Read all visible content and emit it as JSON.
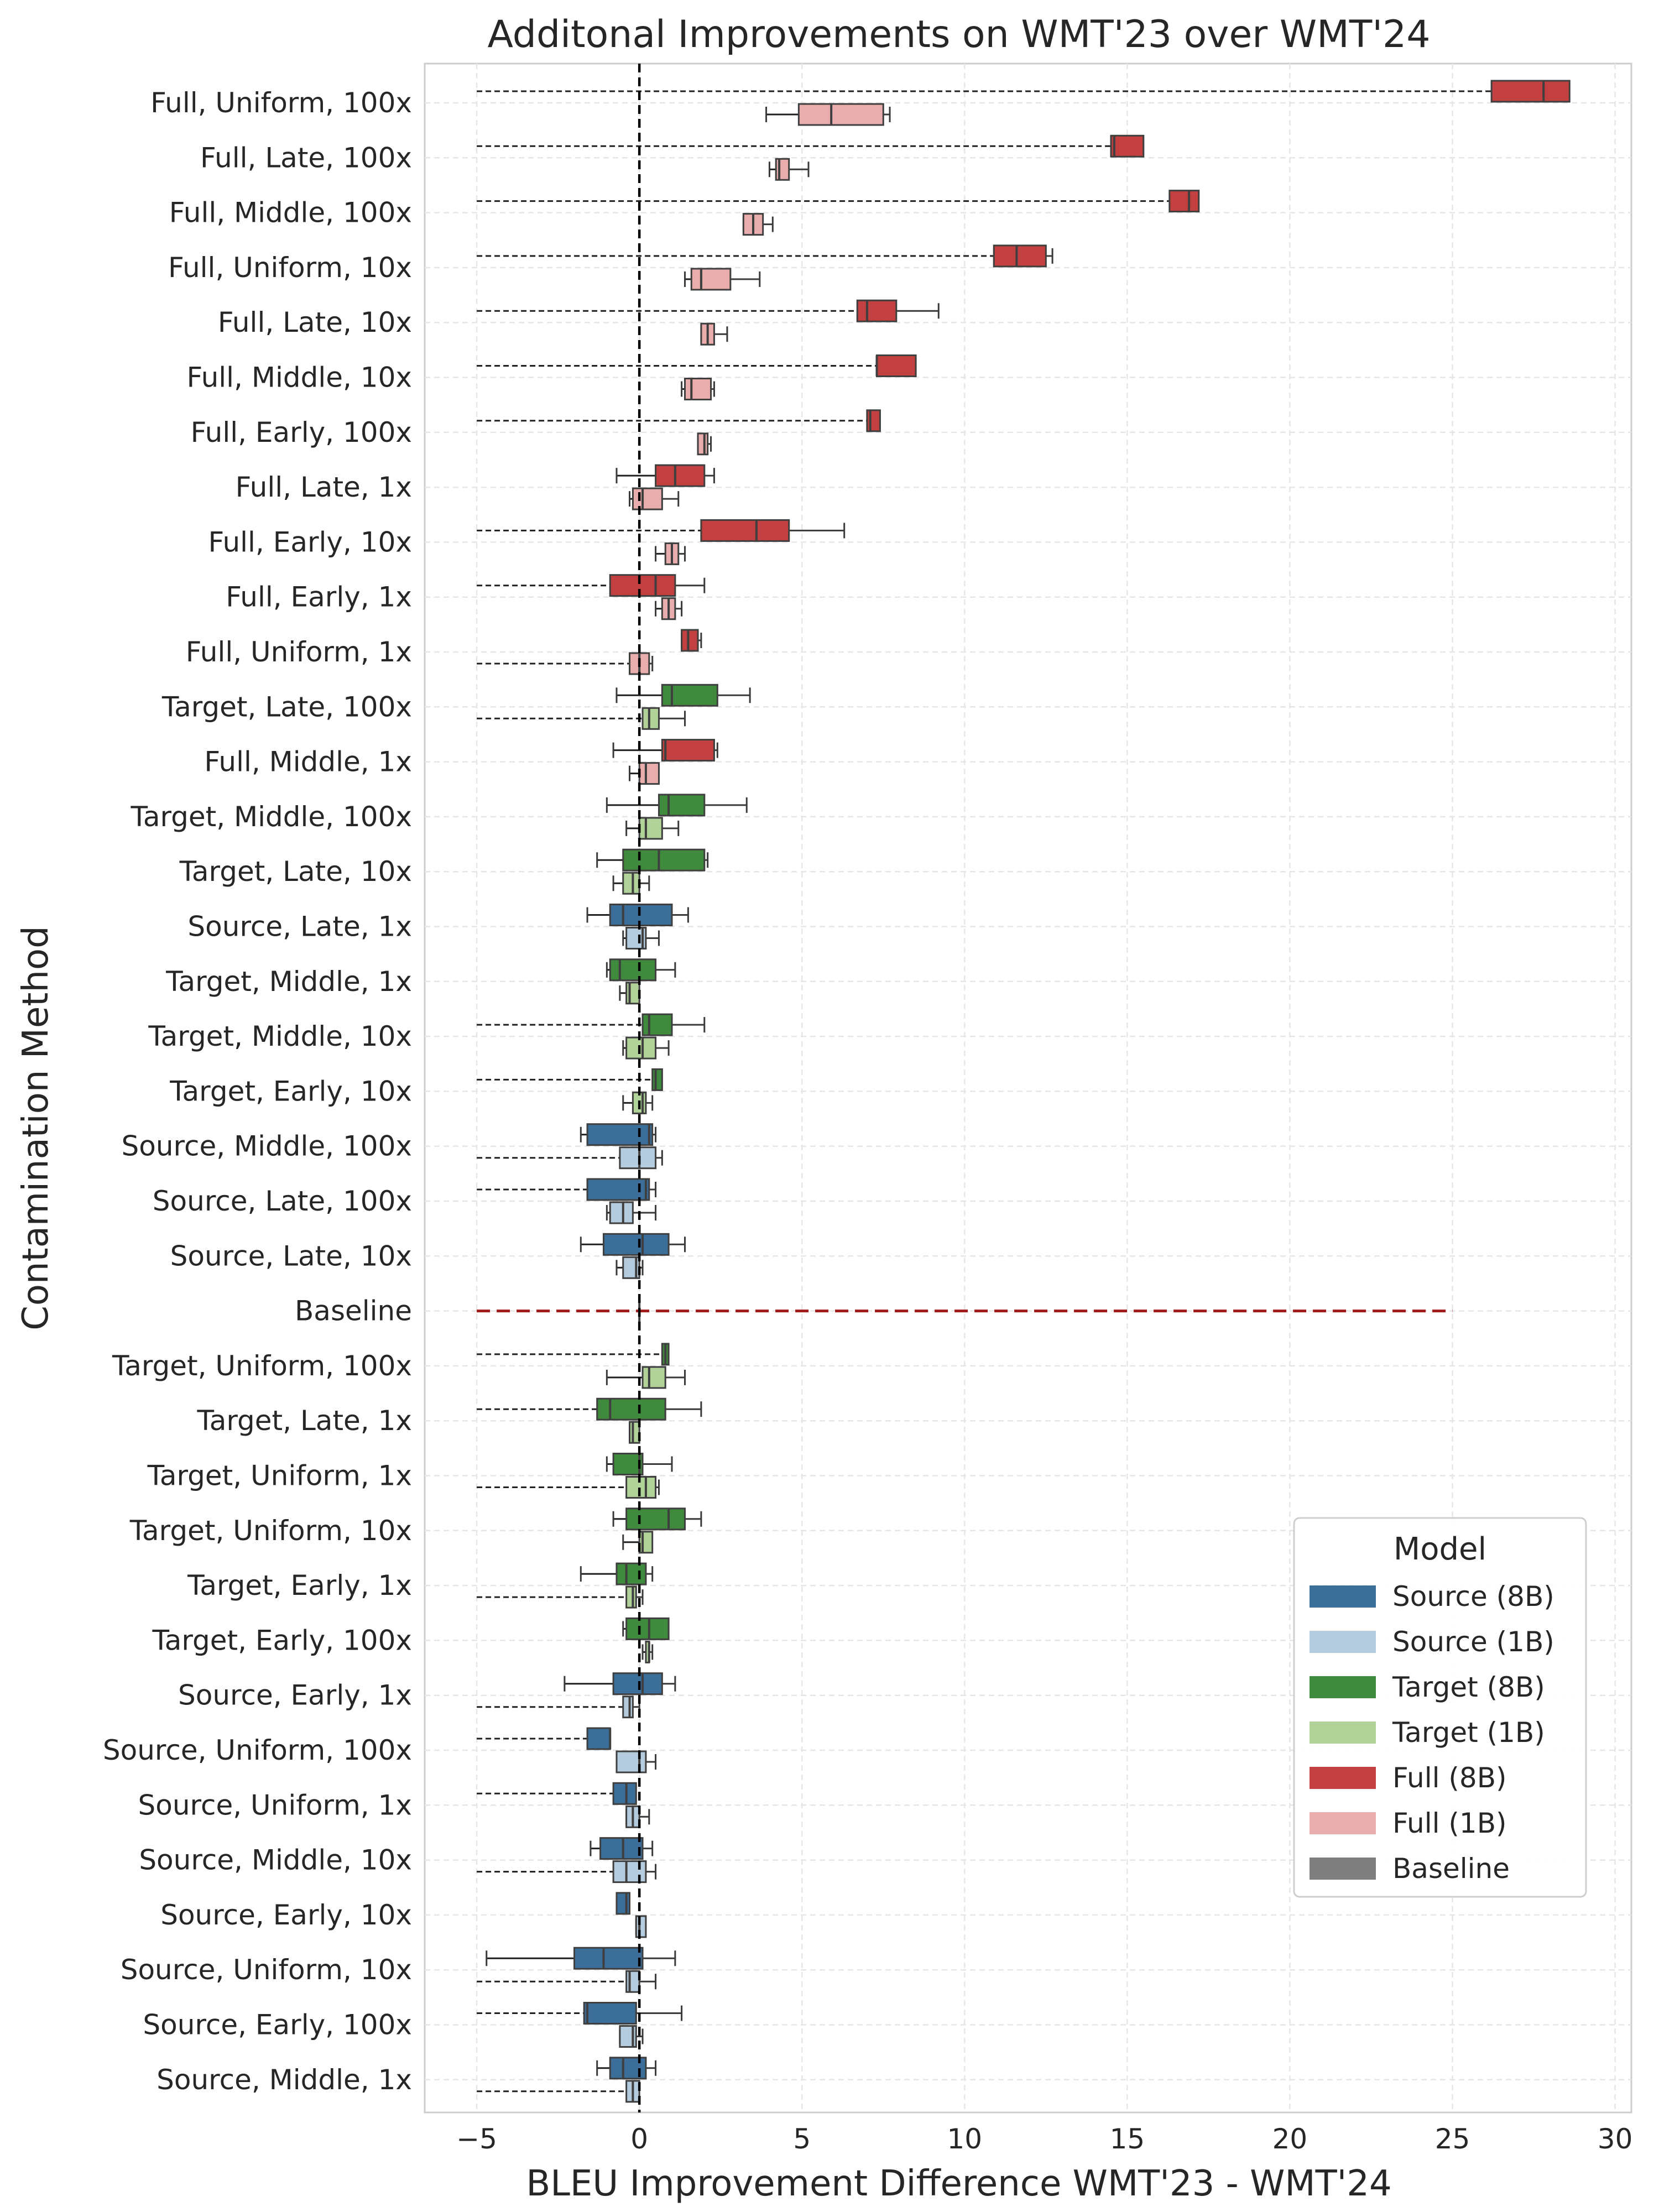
{
  "chart_data": {
    "type": "box",
    "orientation": "horizontal",
    "title": "Additonal Improvements on WMT'23 over WMT'24",
    "xlabel": "BLEU Improvement Difference WMT'23 - WMT'24",
    "ylabel": "Contamination Method",
    "xlim": [
      -6.6,
      30.5
    ],
    "xticks": [
      -5,
      0,
      5,
      10,
      15,
      20,
      25,
      30
    ],
    "xtick_labels": [
      "−5",
      "0",
      "5",
      "10",
      "15",
      "20",
      "25",
      "30"
    ],
    "grid": true,
    "reference_line_x": 0,
    "legend": {
      "title": "Model",
      "position": "lower-right",
      "entries": [
        {
          "label": "Source (8B)",
          "color": "#3b6f9a"
        },
        {
          "label": "Source (1B)",
          "color": "#b4ccdd"
        },
        {
          "label": "Target (8B)",
          "color": "#3f8a3c"
        },
        {
          "label": "Target (1B)",
          "color": "#b1d39a"
        },
        {
          "label": "Full (8B)",
          "color": "#c2403f"
        },
        {
          "label": "Full (1B)",
          "color": "#e8adac"
        },
        {
          "label": "Baseline",
          "color": "#7f7f7f"
        }
      ]
    },
    "series_colors": {
      "Source (8B)": "#3b6f9a",
      "Source (1B)": "#b4ccdd",
      "Target (8B)": "#3f8a3c",
      "Target (1B)": "#b1d39a",
      "Full (8B)": "#c2403f",
      "Full (1B)": "#e8adac",
      "Baseline": "#7f7f7f"
    },
    "baseline_line": {
      "from": -5,
      "to": 25,
      "color": "#a11a1a"
    },
    "categories": [
      {
        "label": "Full, Uniform, 100x",
        "model": "Full",
        "b8": {
          "whislo": -5,
          "q1": 26.2,
          "med": 27.8,
          "q3": 28.6,
          "whishi": 28.6
        },
        "b1": {
          "whislo": 3.9,
          "q1": 4.9,
          "med": 5.9,
          "q3": 7.5,
          "whishi": 7.7
        }
      },
      {
        "label": "Full, Late, 100x",
        "model": "Full",
        "b8": {
          "whislo": -5,
          "q1": 14.5,
          "med": 14.6,
          "q3": 15.5,
          "whishi": 15.5
        },
        "b1": {
          "whislo": 4.0,
          "q1": 4.2,
          "med": 4.3,
          "q3": 4.6,
          "whishi": 5.2
        }
      },
      {
        "label": "Full, Middle, 100x",
        "model": "Full",
        "b8": {
          "whislo": -5,
          "q1": 16.3,
          "med": 16.9,
          "q3": 17.2,
          "whishi": 17.2
        },
        "b1": {
          "whislo": 3.2,
          "q1": 3.2,
          "med": 3.5,
          "q3": 3.8,
          "whishi": 4.1
        }
      },
      {
        "label": "Full, Uniform, 10x",
        "model": "Full",
        "b8": {
          "whislo": -5,
          "q1": 10.9,
          "med": 11.6,
          "q3": 12.5,
          "whishi": 12.7
        },
        "b1": {
          "whislo": 1.4,
          "q1": 1.6,
          "med": 1.9,
          "q3": 2.8,
          "whishi": 3.7
        }
      },
      {
        "label": "Full, Late, 10x",
        "model": "Full",
        "b8": {
          "whislo": -5,
          "q1": 6.7,
          "med": 7.0,
          "q3": 7.9,
          "whishi": 9.2
        },
        "b1": {
          "whislo": 1.9,
          "q1": 1.9,
          "med": 2.1,
          "q3": 2.3,
          "whishi": 2.7
        }
      },
      {
        "label": "Full, Middle, 10x",
        "model": "Full",
        "b8": {
          "whislo": -5,
          "q1": 7.3,
          "med": 7.3,
          "q3": 8.5,
          "whishi": 8.5
        },
        "b1": {
          "whislo": 1.3,
          "q1": 1.4,
          "med": 1.6,
          "q3": 2.2,
          "whishi": 2.3
        }
      },
      {
        "label": "Full, Early, 100x",
        "model": "Full",
        "b8": {
          "whislo": -5,
          "q1": 7.0,
          "med": 7.1,
          "q3": 7.4,
          "whishi": 7.4
        },
        "b1": {
          "whislo": 1.8,
          "q1": 1.8,
          "med": 2.0,
          "q3": 2.1,
          "whishi": 2.2
        }
      },
      {
        "label": "Full, Late, 1x",
        "model": "Full",
        "b8": {
          "whislo": -0.7,
          "q1": 0.5,
          "med": 1.1,
          "q3": 2.0,
          "whishi": 2.3
        },
        "b1": {
          "whislo": -0.3,
          "q1": -0.2,
          "med": 0.1,
          "q3": 0.7,
          "whishi": 1.2
        }
      },
      {
        "label": "Full, Early, 10x",
        "model": "Full",
        "b8": {
          "whislo": -5,
          "q1": 1.9,
          "med": 3.6,
          "q3": 4.6,
          "whishi": 6.3
        },
        "b1": {
          "whislo": 0.5,
          "q1": 0.8,
          "med": 1.0,
          "q3": 1.2,
          "whishi": 1.4
        }
      },
      {
        "label": "Full, Early, 1x",
        "model": "Full",
        "b8": {
          "whislo": -5,
          "q1": -0.9,
          "med": 0.5,
          "q3": 1.1,
          "whishi": 2.0
        },
        "b1": {
          "whislo": 0.5,
          "q1": 0.7,
          "med": 0.9,
          "q3": 1.1,
          "whishi": 1.3
        }
      },
      {
        "label": "Full, Uniform, 1x",
        "model": "Full",
        "b8": {
          "whislo": 1.3,
          "q1": 1.3,
          "med": 1.5,
          "q3": 1.8,
          "whishi": 1.9
        },
        "b1": {
          "whislo": -5,
          "q1": -0.3,
          "med": 0.0,
          "q3": 0.3,
          "whishi": 0.4
        }
      },
      {
        "label": "Target, Late, 100x",
        "model": "Target",
        "b8": {
          "whislo": -0.7,
          "q1": 0.7,
          "med": 1.0,
          "q3": 2.4,
          "whishi": 3.4
        },
        "b1": {
          "whislo": -5,
          "q1": 0.1,
          "med": 0.3,
          "q3": 0.6,
          "whishi": 1.4
        }
      },
      {
        "label": "Full, Middle, 1x",
        "model": "Full",
        "b8": {
          "whislo": -0.8,
          "q1": 0.7,
          "med": 0.8,
          "q3": 2.3,
          "whishi": 2.4
        },
        "b1": {
          "whislo": -0.3,
          "q1": 0.0,
          "med": 0.2,
          "q3": 0.6,
          "whishi": 0.6
        }
      },
      {
        "label": "Target, Middle, 100x",
        "model": "Target",
        "b8": {
          "whislo": -1.0,
          "q1": 0.6,
          "med": 0.9,
          "q3": 2.0,
          "whishi": 3.3
        },
        "b1": {
          "whislo": -0.4,
          "q1": 0.0,
          "med": 0.2,
          "q3": 0.7,
          "whishi": 1.2
        }
      },
      {
        "label": "Target, Late, 10x",
        "model": "Target",
        "b8": {
          "whislo": -1.3,
          "q1": -0.5,
          "med": 0.6,
          "q3": 2.0,
          "whishi": 2.1
        },
        "b1": {
          "whislo": -0.8,
          "q1": -0.5,
          "med": -0.2,
          "q3": 0.0,
          "whishi": 0.3
        }
      },
      {
        "label": "Source, Late, 1x",
        "model": "Source",
        "b8": {
          "whislo": -1.6,
          "q1": -0.9,
          "med": -0.5,
          "q3": 1.0,
          "whishi": 1.5
        },
        "b1": {
          "whislo": -0.5,
          "q1": -0.4,
          "med": 0.1,
          "q3": 0.2,
          "whishi": 0.6
        }
      },
      {
        "label": "Target, Middle, 1x",
        "model": "Target",
        "b8": {
          "whislo": -1.0,
          "q1": -0.9,
          "med": -0.6,
          "q3": 0.5,
          "whishi": 1.1
        },
        "b1": {
          "whislo": -0.6,
          "q1": -0.4,
          "med": -0.3,
          "q3": 0.0,
          "whishi": 0.0
        }
      },
      {
        "label": "Target, Middle, 10x",
        "model": "Target",
        "b8": {
          "whislo": -5,
          "q1": 0.1,
          "med": 0.3,
          "q3": 1.0,
          "whishi": 2.0
        },
        "b1": {
          "whislo": -0.5,
          "q1": -0.4,
          "med": 0.1,
          "q3": 0.5,
          "whishi": 0.9
        }
      },
      {
        "label": "Target, Early, 10x",
        "model": "Target",
        "b8": {
          "whislo": -5,
          "q1": 0.4,
          "med": 0.5,
          "q3": 0.7,
          "whishi": 0.7
        },
        "b1": {
          "whislo": -0.5,
          "q1": -0.2,
          "med": 0.1,
          "q3": 0.2,
          "whishi": 0.4
        }
      },
      {
        "label": "Source, Middle, 100x",
        "model": "Source",
        "b8": {
          "whislo": -1.8,
          "q1": -1.6,
          "med": 0.3,
          "q3": 0.4,
          "whishi": 0.5
        },
        "b1": {
          "whislo": -5,
          "q1": -0.6,
          "med": 0.0,
          "q3": 0.5,
          "whishi": 0.7
        }
      },
      {
        "label": "Source, Late, 100x",
        "model": "Source",
        "b8": {
          "whislo": -5,
          "q1": -1.6,
          "med": 0.2,
          "q3": 0.3,
          "whishi": 0.5
        },
        "b1": {
          "whislo": -1.0,
          "q1": -0.9,
          "med": -0.5,
          "q3": -0.2,
          "whishi": 0.5
        }
      },
      {
        "label": "Source, Late, 10x",
        "model": "Source",
        "b8": {
          "whislo": -1.8,
          "q1": -1.1,
          "med": 0.1,
          "q3": 0.9,
          "whishi": 1.4
        },
        "b1": {
          "whislo": -0.7,
          "q1": -0.5,
          "med": -0.1,
          "q3": 0.0,
          "whishi": 0.1
        }
      },
      {
        "label": "Baseline",
        "model": "Baseline"
      },
      {
        "label": "Target, Uniform, 100x",
        "model": "Target",
        "b8": {
          "whislo": -5,
          "q1": 0.7,
          "med": 0.8,
          "q3": 0.9,
          "whishi": 0.9
        },
        "b1": {
          "whislo": -1.0,
          "q1": 0.1,
          "med": 0.3,
          "q3": 0.8,
          "whishi": 1.4
        }
      },
      {
        "label": "Target, Late, 1x",
        "model": "Target",
        "b8": {
          "whislo": -5,
          "q1": -1.3,
          "med": -0.9,
          "q3": 0.8,
          "whishi": 1.9
        },
        "b1": {
          "whislo": -0.3,
          "q1": -0.3,
          "med": -0.2,
          "q3": 0.0,
          "whishi": 0.0
        }
      },
      {
        "label": "Target, Uniform, 1x",
        "model": "Target",
        "b8": {
          "whislo": -1.0,
          "q1": -0.8,
          "med": 0.0,
          "q3": 0.1,
          "whishi": 1.0
        },
        "b1": {
          "whislo": -5,
          "q1": -0.4,
          "med": 0.2,
          "q3": 0.5,
          "whishi": 0.6
        }
      },
      {
        "label": "Target, Uniform, 10x",
        "model": "Target",
        "b8": {
          "whislo": -0.8,
          "q1": -0.4,
          "med": 0.9,
          "q3": 1.4,
          "whishi": 1.9
        },
        "b1": {
          "whislo": -0.5,
          "q1": 0.0,
          "med": 0.1,
          "q3": 0.4,
          "whishi": 0.4
        }
      },
      {
        "label": "Target, Early, 1x",
        "model": "Target",
        "b8": {
          "whislo": -1.8,
          "q1": -0.7,
          "med": -0.4,
          "q3": 0.2,
          "whishi": 0.4
        },
        "b1": {
          "whislo": -5,
          "q1": -0.4,
          "med": -0.2,
          "q3": -0.1,
          "whishi": 0.1
        }
      },
      {
        "label": "Target, Early, 100x",
        "model": "Target",
        "b8": {
          "whislo": -0.5,
          "q1": -0.4,
          "med": 0.3,
          "q3": 0.9,
          "whishi": 0.9
        },
        "b1": {
          "whislo": 0.1,
          "q1": 0.2,
          "med": 0.3,
          "q3": 0.3,
          "whishi": 0.4
        }
      },
      {
        "label": "Source, Early, 1x",
        "model": "Source",
        "b8": {
          "whislo": -2.3,
          "q1": -0.8,
          "med": 0.1,
          "q3": 0.7,
          "whishi": 1.1
        },
        "b1": {
          "whislo": -5,
          "q1": -0.5,
          "med": -0.3,
          "q3": -0.2,
          "whishi": 0.0
        }
      },
      {
        "label": "Source, Uniform, 100x",
        "model": "Source",
        "b8": {
          "whislo": -5,
          "q1": -1.6,
          "med": -0.9,
          "q3": -0.9,
          "whishi": -0.9
        },
        "b1": {
          "whislo": -0.7,
          "q1": -0.7,
          "med": 0.0,
          "q3": 0.2,
          "whishi": 0.5
        }
      },
      {
        "label": "Source, Uniform, 1x",
        "model": "Source",
        "b8": {
          "whislo": -5,
          "q1": -0.8,
          "med": -0.4,
          "q3": -0.1,
          "whishi": -0.1
        },
        "b1": {
          "whislo": -0.4,
          "q1": -0.4,
          "med": -0.2,
          "q3": 0.0,
          "whishi": 0.3
        }
      },
      {
        "label": "Source, Middle, 10x",
        "model": "Source",
        "b8": {
          "whislo": -1.5,
          "q1": -1.2,
          "med": -0.5,
          "q3": 0.1,
          "whishi": 0.4
        },
        "b1": {
          "whislo": -5,
          "q1": -0.8,
          "med": -0.4,
          "q3": 0.2,
          "whishi": 0.5
        }
      },
      {
        "label": "Source, Early, 10x",
        "model": "Source",
        "b8": {
          "whislo": -0.7,
          "q1": -0.7,
          "med": -0.4,
          "q3": -0.3,
          "whishi": -0.3
        },
        "b1": {
          "whislo": -0.1,
          "q1": -0.1,
          "med": 0.0,
          "q3": 0.2,
          "whishi": 0.2
        }
      },
      {
        "label": "Source, Uniform, 10x",
        "model": "Source",
        "b8": {
          "whislo": -4.7,
          "q1": -2.0,
          "med": -1.1,
          "q3": 0.1,
          "whishi": 1.1
        },
        "b1": {
          "whislo": -5,
          "q1": -0.4,
          "med": -0.3,
          "q3": 0.0,
          "whishi": 0.5
        }
      },
      {
        "label": "Source, Early, 100x",
        "model": "Source",
        "b8": {
          "whislo": -5,
          "q1": -1.7,
          "med": -1.6,
          "q3": -0.1,
          "whishi": 1.3
        },
        "b1": {
          "whislo": -0.6,
          "q1": -0.6,
          "med": -0.2,
          "q3": -0.1,
          "whishi": 0.1
        }
      },
      {
        "label": "Source, Middle, 1x",
        "model": "Source",
        "b8": {
          "whislo": -1.3,
          "q1": -0.9,
          "med": -0.5,
          "q3": 0.2,
          "whishi": 0.5
        },
        "b1": {
          "whislo": -5,
          "q1": -0.4,
          "med": -0.2,
          "q3": 0.0,
          "whishi": 0.0
        }
      }
    ]
  }
}
